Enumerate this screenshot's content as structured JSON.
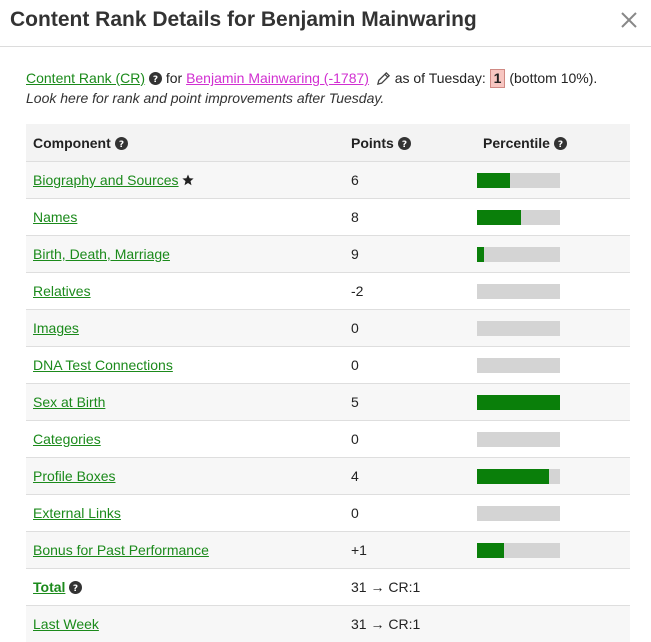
{
  "dialog": {
    "title": "Content Rank Details for Benjamin Mainwaring"
  },
  "summary": {
    "cr_link": "Content Rank (CR)",
    "for_text": "for",
    "person_link": "Benjamin Mainwaring (-1787)",
    "as_of_text": "as of Tuesday:",
    "rank_value": "1",
    "rank_suffix": "(bottom 10%).",
    "note": "Look here for rank and point improvements after Tuesday."
  },
  "table": {
    "headers": {
      "component": "Component",
      "points": "Points",
      "percentile": "Percentile"
    },
    "rows": [
      {
        "component": "Biography and Sources",
        "points": "6",
        "percentile": 0.4,
        "starred": true
      },
      {
        "component": "Names",
        "points": "8",
        "percentile": 0.53
      },
      {
        "component": "Birth, Death, Marriage",
        "points": "9",
        "percentile": 0.08
      },
      {
        "component": "Relatives",
        "points": "-2",
        "percentile": 0
      },
      {
        "component": "Images",
        "points": "0",
        "percentile": 0
      },
      {
        "component": "DNA Test Connections",
        "points": "0",
        "percentile": 0
      },
      {
        "component": "Sex at Birth",
        "points": "5",
        "percentile": 1.0
      },
      {
        "component": "Categories",
        "points": "0",
        "percentile": 0
      },
      {
        "component": "Profile Boxes",
        "points": "4",
        "percentile": 0.87
      },
      {
        "component": "External Links",
        "points": "0",
        "percentile": 0
      },
      {
        "component": "Bonus for Past Performance",
        "points": "+1",
        "percentile": 0.33
      }
    ],
    "total": {
      "label": "Total",
      "points": "31 → CR:1"
    },
    "last_week": {
      "label": "Last Week",
      "points": "31 → CR:1"
    }
  },
  "colors": {
    "link_green": "#1b8a1b",
    "person_magenta": "#d12fd1",
    "bar_fill": "#0a7f0a",
    "bar_track": "#d4d4d4",
    "rank_highlight": "#f7c6c1"
  },
  "icons": {
    "close": "close-icon",
    "help": "question-circle-icon",
    "edit": "pencil-icon",
    "star": "star-icon"
  }
}
